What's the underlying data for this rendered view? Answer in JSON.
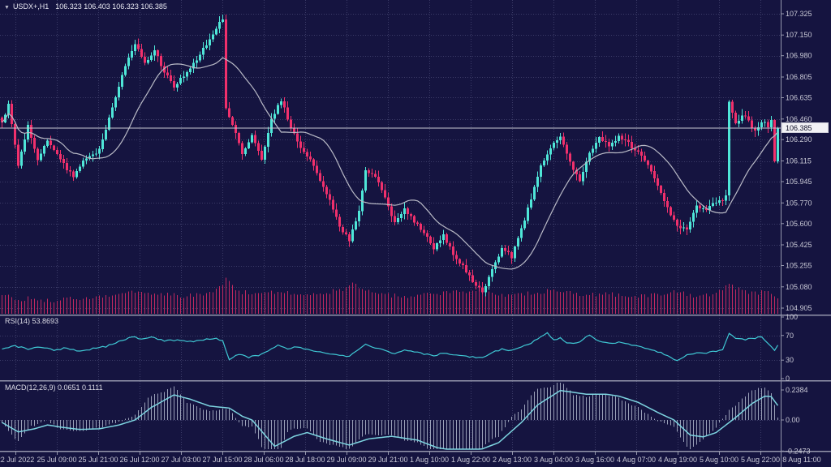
{
  "colors": {
    "background": "#151440",
    "grid": "#3c3c68",
    "bull": "#4fe6d8",
    "bear": "#f0306c",
    "volume": "#c02960",
    "ma_line": "#b9bac6",
    "rsi_line": "#3fc8d4",
    "macd_signal": "#7dd4e0",
    "macd_histogram": "#9aa0b8",
    "axis_text": "#c9c9d6",
    "separator": "#9496ac",
    "current_price_line": "#c8c8d2",
    "price_box_bg": "#f2f2f5",
    "price_box_text": "#0c0c24"
  },
  "chart_data": {
    "type": "candlestick",
    "symbol_line": "USDX+,H1",
    "ohlc_line": "106.323 106.403 106.323 106.385",
    "current_price": "106.385",
    "bars_total": 240,
    "ylim": [
      104.905,
      107.325
    ],
    "price_axis_labels": [
      "107.325",
      "107.150",
      "106.980",
      "106.805",
      "106.635",
      "106.460",
      "106.290",
      "106.115",
      "105.945",
      "105.770",
      "105.600",
      "105.425",
      "105.255",
      "105.080",
      "104.905"
    ],
    "time_axis_labels": [
      "22 Jul 2022",
      "25 Jul 09:00",
      "25 Jul 21:00",
      "26 Jul 12:00",
      "27 Jul 03:00",
      "27 Jul 15:00",
      "28 Jul 06:00",
      "28 Jul 18:00",
      "29 Jul 09:00",
      "29 Jul 21:00",
      "1 Aug 10:00",
      "1 Aug 22:00",
      "2 Aug 13:00",
      "3 Aug 04:00",
      "3 Aug 16:00",
      "4 Aug 07:00",
      "4 Aug 19:00",
      "5 Aug 10:00",
      "5 Aug 22:00",
      "8 Aug 11:00"
    ],
    "moving_average_period": 18,
    "price_keyframes": [
      [
        0,
        106.42
      ],
      [
        2,
        106.58
      ],
      [
        5,
        106.08
      ],
      [
        8,
        106.4
      ],
      [
        11,
        106.12
      ],
      [
        14,
        106.28
      ],
      [
        18,
        106.12
      ],
      [
        22,
        105.98
      ],
      [
        26,
        106.15
      ],
      [
        30,
        106.2
      ],
      [
        34,
        106.55
      ],
      [
        38,
        106.9
      ],
      [
        41,
        107.08
      ],
      [
        44,
        106.92
      ],
      [
        47,
        107.02
      ],
      [
        50,
        106.85
      ],
      [
        53,
        106.72
      ],
      [
        56,
        106.82
      ],
      [
        60,
        106.95
      ],
      [
        64,
        107.12
      ],
      [
        67,
        107.26
      ],
      [
        68,
        107.28
      ],
      [
        69,
        106.55
      ],
      [
        71,
        106.42
      ],
      [
        74,
        106.18
      ],
      [
        77,
        106.32
      ],
      [
        80,
        106.12
      ],
      [
        83,
        106.45
      ],
      [
        86,
        106.62
      ],
      [
        89,
        106.38
      ],
      [
        92,
        106.22
      ],
      [
        95,
        106.12
      ],
      [
        98,
        105.95
      ],
      [
        101,
        105.8
      ],
      [
        104,
        105.58
      ],
      [
        107,
        105.46
      ],
      [
        110,
        105.7
      ],
      [
        112,
        106.05
      ],
      [
        115,
        105.98
      ],
      [
        118,
        105.82
      ],
      [
        121,
        105.6
      ],
      [
        124,
        105.72
      ],
      [
        127,
        105.62
      ],
      [
        130,
        105.52
      ],
      [
        133,
        105.4
      ],
      [
        136,
        105.5
      ],
      [
        139,
        105.35
      ],
      [
        142,
        105.25
      ],
      [
        145,
        105.12
      ],
      [
        148,
        105.04
      ],
      [
        151,
        105.22
      ],
      [
        154,
        105.4
      ],
      [
        157,
        105.33
      ],
      [
        160,
        105.55
      ],
      [
        163,
        105.8
      ],
      [
        166,
        106.08
      ],
      [
        169,
        106.22
      ],
      [
        172,
        106.32
      ],
      [
        175,
        106.1
      ],
      [
        178,
        105.96
      ],
      [
        181,
        106.18
      ],
      [
        184,
        106.3
      ],
      [
        187,
        106.24
      ],
      [
        190,
        106.31
      ],
      [
        193,
        106.26
      ],
      [
        196,
        106.18
      ],
      [
        199,
        106.08
      ],
      [
        202,
        105.9
      ],
      [
        205,
        105.72
      ],
      [
        208,
        105.58
      ],
      [
        211,
        105.55
      ],
      [
        214,
        105.74
      ],
      [
        217,
        105.72
      ],
      [
        220,
        105.78
      ],
      [
        222,
        105.8
      ],
      [
        223,
        105.82
      ],
      [
        224,
        106.6
      ],
      [
        226,
        106.42
      ],
      [
        228,
        106.5
      ],
      [
        230,
        106.45
      ],
      [
        232,
        106.35
      ],
      [
        234,
        106.44
      ],
      [
        236,
        106.4
      ],
      [
        237,
        106.46
      ],
      [
        238,
        106.12
      ],
      [
        239,
        106.385
      ]
    ],
    "volume_keyframes": [
      [
        0,
        0.45
      ],
      [
        5,
        0.3
      ],
      [
        10,
        0.35
      ],
      [
        15,
        0.25
      ],
      [
        20,
        0.3
      ],
      [
        25,
        0.35
      ],
      [
        30,
        0.4
      ],
      [
        35,
        0.5
      ],
      [
        40,
        0.55
      ],
      [
        45,
        0.45
      ],
      [
        50,
        0.5
      ],
      [
        55,
        0.4
      ],
      [
        60,
        0.45
      ],
      [
        65,
        0.6
      ],
      [
        68,
        0.8
      ],
      [
        69,
        1.0
      ],
      [
        72,
        0.6
      ],
      [
        76,
        0.5
      ],
      [
        80,
        0.45
      ],
      [
        85,
        0.55
      ],
      [
        90,
        0.5
      ],
      [
        95,
        0.45
      ],
      [
        100,
        0.55
      ],
      [
        105,
        0.65
      ],
      [
        108,
        0.8
      ],
      [
        112,
        0.6
      ],
      [
        116,
        0.5
      ],
      [
        120,
        0.45
      ],
      [
        125,
        0.4
      ],
      [
        130,
        0.45
      ],
      [
        135,
        0.5
      ],
      [
        140,
        0.55
      ],
      [
        145,
        0.6
      ],
      [
        148,
        0.7
      ],
      [
        152,
        0.5
      ],
      [
        156,
        0.45
      ],
      [
        160,
        0.5
      ],
      [
        165,
        0.55
      ],
      [
        170,
        0.6
      ],
      [
        175,
        0.5
      ],
      [
        180,
        0.45
      ],
      [
        185,
        0.5
      ],
      [
        190,
        0.45
      ],
      [
        195,
        0.4
      ],
      [
        200,
        0.45
      ],
      [
        205,
        0.5
      ],
      [
        208,
        0.6
      ],
      [
        212,
        0.45
      ],
      [
        216,
        0.4
      ],
      [
        220,
        0.45
      ],
      [
        224,
        0.9
      ],
      [
        228,
        0.55
      ],
      [
        232,
        0.5
      ],
      [
        235,
        0.6
      ],
      [
        237,
        0.5
      ],
      [
        239,
        0.4
      ]
    ],
    "rsi": {
      "label_text": "RSI(14) 53.8693",
      "value": "53.8693",
      "axis_labels": [
        "100",
        "70",
        "30",
        "0"
      ],
      "levels": [
        70,
        30
      ],
      "ylim": [
        0,
        100
      ],
      "keyframes": [
        [
          0,
          47
        ],
        [
          4,
          53
        ],
        [
          8,
          48
        ],
        [
          12,
          51
        ],
        [
          16,
          46
        ],
        [
          20,
          50
        ],
        [
          24,
          44
        ],
        [
          28,
          49
        ],
        [
          32,
          52
        ],
        [
          36,
          60
        ],
        [
          40,
          68
        ],
        [
          43,
          64
        ],
        [
          46,
          67
        ],
        [
          50,
          61
        ],
        [
          54,
          63
        ],
        [
          58,
          60
        ],
        [
          62,
          63
        ],
        [
          66,
          65
        ],
        [
          68,
          62
        ],
        [
          70,
          31
        ],
        [
          73,
          40
        ],
        [
          76,
          35
        ],
        [
          79,
          38
        ],
        [
          82,
          45
        ],
        [
          85,
          54
        ],
        [
          88,
          49
        ],
        [
          91,
          51
        ],
        [
          94,
          47
        ],
        [
          97,
          44
        ],
        [
          100,
          41
        ],
        [
          104,
          38
        ],
        [
          107,
          36
        ],
        [
          110,
          48
        ],
        [
          112,
          57
        ],
        [
          115,
          50
        ],
        [
          118,
          45
        ],
        [
          121,
          40
        ],
        [
          124,
          46
        ],
        [
          127,
          43
        ],
        [
          130,
          40
        ],
        [
          133,
          37
        ],
        [
          136,
          42
        ],
        [
          139,
          39
        ],
        [
          142,
          37
        ],
        [
          145,
          35
        ],
        [
          148,
          34
        ],
        [
          151,
          42
        ],
        [
          154,
          48
        ],
        [
          157,
          45
        ],
        [
          160,
          52
        ],
        [
          163,
          58
        ],
        [
          166,
          68
        ],
        [
          168,
          74
        ],
        [
          170,
          62
        ],
        [
          172,
          66
        ],
        [
          174,
          58
        ],
        [
          177,
          57
        ],
        [
          181,
          71
        ],
        [
          184,
          60
        ],
        [
          187,
          57
        ],
        [
          190,
          59
        ],
        [
          193,
          56
        ],
        [
          196,
          52
        ],
        [
          199,
          48
        ],
        [
          202,
          44
        ],
        [
          205,
          37
        ],
        [
          208,
          29
        ],
        [
          211,
          38
        ],
        [
          214,
          43
        ],
        [
          217,
          42
        ],
        [
          220,
          45
        ],
        [
          222,
          47
        ],
        [
          224,
          73
        ],
        [
          226,
          66
        ],
        [
          229,
          64
        ],
        [
          232,
          66
        ],
        [
          234,
          68
        ],
        [
          236,
          58
        ],
        [
          238,
          45
        ],
        [
          239,
          54
        ]
      ]
    },
    "macd": {
      "label_text": "MACD(12,26,9) 0.0651 0.1111",
      "main_value": "0.0651",
      "signal_value": "0.1111",
      "axis_labels": [
        "0.2384",
        "0.00",
        "-0.2473"
      ],
      "ylim": [
        -0.2473,
        0.2384
      ],
      "signal_keyframes": [
        [
          0,
          -0.02
        ],
        [
          5,
          -0.095
        ],
        [
          10,
          -0.07
        ],
        [
          14,
          -0.04
        ],
        [
          19,
          -0.06
        ],
        [
          24,
          -0.075
        ],
        [
          30,
          -0.07
        ],
        [
          36,
          -0.04
        ],
        [
          41,
          0.0
        ],
        [
          46,
          0.1
        ],
        [
          53,
          0.2
        ],
        [
          58,
          0.165
        ],
        [
          64,
          0.11
        ],
        [
          70,
          0.095
        ],
        [
          74,
          0.03
        ],
        [
          77,
          0.0
        ],
        [
          84,
          -0.21
        ],
        [
          90,
          -0.13
        ],
        [
          94,
          -0.1
        ],
        [
          100,
          -0.15
        ],
        [
          107,
          -0.2
        ],
        [
          113,
          -0.15
        ],
        [
          120,
          -0.13
        ],
        [
          128,
          -0.16
        ],
        [
          134,
          -0.22
        ],
        [
          140,
          -0.245
        ],
        [
          147,
          -0.24
        ],
        [
          153,
          -0.18
        ],
        [
          160,
          -0.02
        ],
        [
          165,
          0.12
        ],
        [
          172,
          0.235
        ],
        [
          176,
          0.22
        ],
        [
          180,
          0.205
        ],
        [
          186,
          0.205
        ],
        [
          190,
          0.19
        ],
        [
          196,
          0.14
        ],
        [
          202,
          0.06
        ],
        [
          207,
          0.0
        ],
        [
          212,
          -0.12
        ],
        [
          216,
          -0.135
        ],
        [
          220,
          -0.1
        ],
        [
          226,
          0.02
        ],
        [
          231,
          0.13
        ],
        [
          235,
          0.19
        ],
        [
          237,
          0.185
        ],
        [
          239,
          0.115
        ]
      ]
    }
  }
}
